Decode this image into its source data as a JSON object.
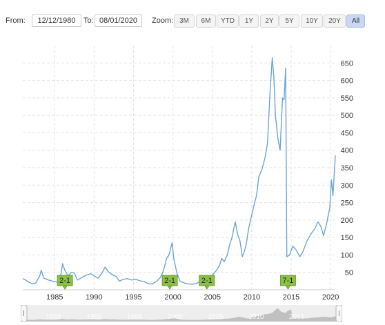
{
  "toolbar": {
    "from_label": "From:",
    "from_value": "12/12/1980",
    "to_label": "To:",
    "to_value": "08/01/2020",
    "zoom_label": "Zoom:",
    "zoom_buttons": [
      "3M",
      "6M",
      "YTD",
      "1Y",
      "2Y",
      "5Y",
      "10Y",
      "20Y",
      "All"
    ],
    "active_zoom": "All"
  },
  "colors": {
    "line": "#6aa4d8",
    "flag_fill": "#8cbf4a",
    "grid": "#e3e3e3",
    "navigator_fill": "#9a9a9a"
  },
  "navigator": {
    "year_labels": [
      "1985",
      "1990",
      "1995",
      "2000",
      "2005",
      "2010",
      "2015"
    ]
  },
  "chart_data": {
    "type": "line",
    "title": "",
    "xlabel": "",
    "ylabel": "",
    "x_range": [
      1980.95,
      2020.6
    ],
    "ylim": [
      0,
      700
    ],
    "y_ticks": [
      50,
      100,
      150,
      200,
      250,
      300,
      350,
      400,
      450,
      500,
      550,
      600,
      650
    ],
    "x_ticks": [
      1985,
      1990,
      1995,
      2000,
      2005,
      2010,
      2015,
      2020
    ],
    "grid": true,
    "y_axis_side": "right",
    "series": [
      {
        "points": [
          [
            1980.95,
            32
          ],
          [
            1981.3,
            28
          ],
          [
            1981.7,
            22
          ],
          [
            1982.2,
            17
          ],
          [
            1982.6,
            20
          ],
          [
            1983.1,
            40
          ],
          [
            1983.3,
            56
          ],
          [
            1983.6,
            34
          ],
          [
            1984.2,
            28
          ],
          [
            1984.7,
            25
          ],
          [
            1985.3,
            22
          ],
          [
            1985.8,
            45
          ],
          [
            1986.0,
            75
          ],
          [
            1986.3,
            55
          ],
          [
            1986.7,
            40
          ],
          [
            1987.1,
            50
          ],
          [
            1987.5,
            48
          ],
          [
            1987.9,
            28
          ],
          [
            1988.5,
            36
          ],
          [
            1989.0,
            42
          ],
          [
            1989.6,
            46
          ],
          [
            1990.0,
            40
          ],
          [
            1990.5,
            33
          ],
          [
            1991.0,
            48
          ],
          [
            1991.4,
            65
          ],
          [
            1991.8,
            52
          ],
          [
            1992.3,
            43
          ],
          [
            1992.8,
            38
          ],
          [
            1993.2,
            25
          ],
          [
            1993.7,
            30
          ],
          [
            1994.2,
            32
          ],
          [
            1994.8,
            28
          ],
          [
            1995.3,
            30
          ],
          [
            1995.8,
            26
          ],
          [
            1996.3,
            24
          ],
          [
            1996.9,
            17
          ],
          [
            1997.4,
            17
          ],
          [
            1997.9,
            24
          ],
          [
            1998.4,
            35
          ],
          [
            1998.8,
            55
          ],
          [
            1999.2,
            90
          ],
          [
            1999.5,
            100
          ],
          [
            1999.9,
            135
          ],
          [
            2000.1,
            90
          ],
          [
            2000.5,
            48
          ],
          [
            2000.9,
            25
          ],
          [
            2001.4,
            20
          ],
          [
            2001.9,
            17
          ],
          [
            2002.4,
            16
          ],
          [
            2003.0,
            18
          ],
          [
            2003.5,
            25
          ],
          [
            2004.0,
            40
          ],
          [
            2004.5,
            30
          ],
          [
            2005.0,
            42
          ],
          [
            2005.5,
            55
          ],
          [
            2005.9,
            70
          ],
          [
            2006.2,
            90
          ],
          [
            2006.5,
            80
          ],
          [
            2006.9,
            100
          ],
          [
            2007.2,
            130
          ],
          [
            2007.5,
            150
          ],
          [
            2007.9,
            195
          ],
          [
            2008.2,
            160
          ],
          [
            2008.5,
            140
          ],
          [
            2008.8,
            95
          ],
          [
            2009.0,
            105
          ],
          [
            2009.3,
            130
          ],
          [
            2009.6,
            175
          ],
          [
            2009.9,
            205
          ],
          [
            2010.2,
            235
          ],
          [
            2010.6,
            270
          ],
          [
            2010.9,
            325
          ],
          [
            2011.3,
            345
          ],
          [
            2011.7,
            380
          ],
          [
            2012.0,
            420
          ],
          [
            2012.3,
            560
          ],
          [
            2012.6,
            665
          ],
          [
            2012.8,
            610
          ],
          [
            2013.0,
            500
          ],
          [
            2013.3,
            435
          ],
          [
            2013.6,
            400
          ],
          [
            2013.9,
            550
          ],
          [
            2014.1,
            545
          ],
          [
            2014.3,
            635
          ],
          [
            2014.45,
            95
          ],
          [
            2014.8,
            100
          ],
          [
            2015.2,
            125
          ],
          [
            2015.6,
            115
          ],
          [
            2016.1,
            95
          ],
          [
            2016.5,
            110
          ],
          [
            2017.0,
            140
          ],
          [
            2017.5,
            160
          ],
          [
            2018.0,
            175
          ],
          [
            2018.4,
            195
          ],
          [
            2018.8,
            180
          ],
          [
            2019.1,
            155
          ],
          [
            2019.5,
            190
          ],
          [
            2019.9,
            235
          ],
          [
            2020.1,
            315
          ],
          [
            2020.3,
            270
          ],
          [
            2020.6,
            385
          ]
        ]
      }
    ],
    "annotations": [
      {
        "text": "2-1",
        "x": 1986.3
      },
      {
        "text": "2-1",
        "x": 1999.6
      },
      {
        "text": "2-1",
        "x": 2004.3
      },
      {
        "text": "7-1",
        "x": 2014.6
      }
    ]
  }
}
